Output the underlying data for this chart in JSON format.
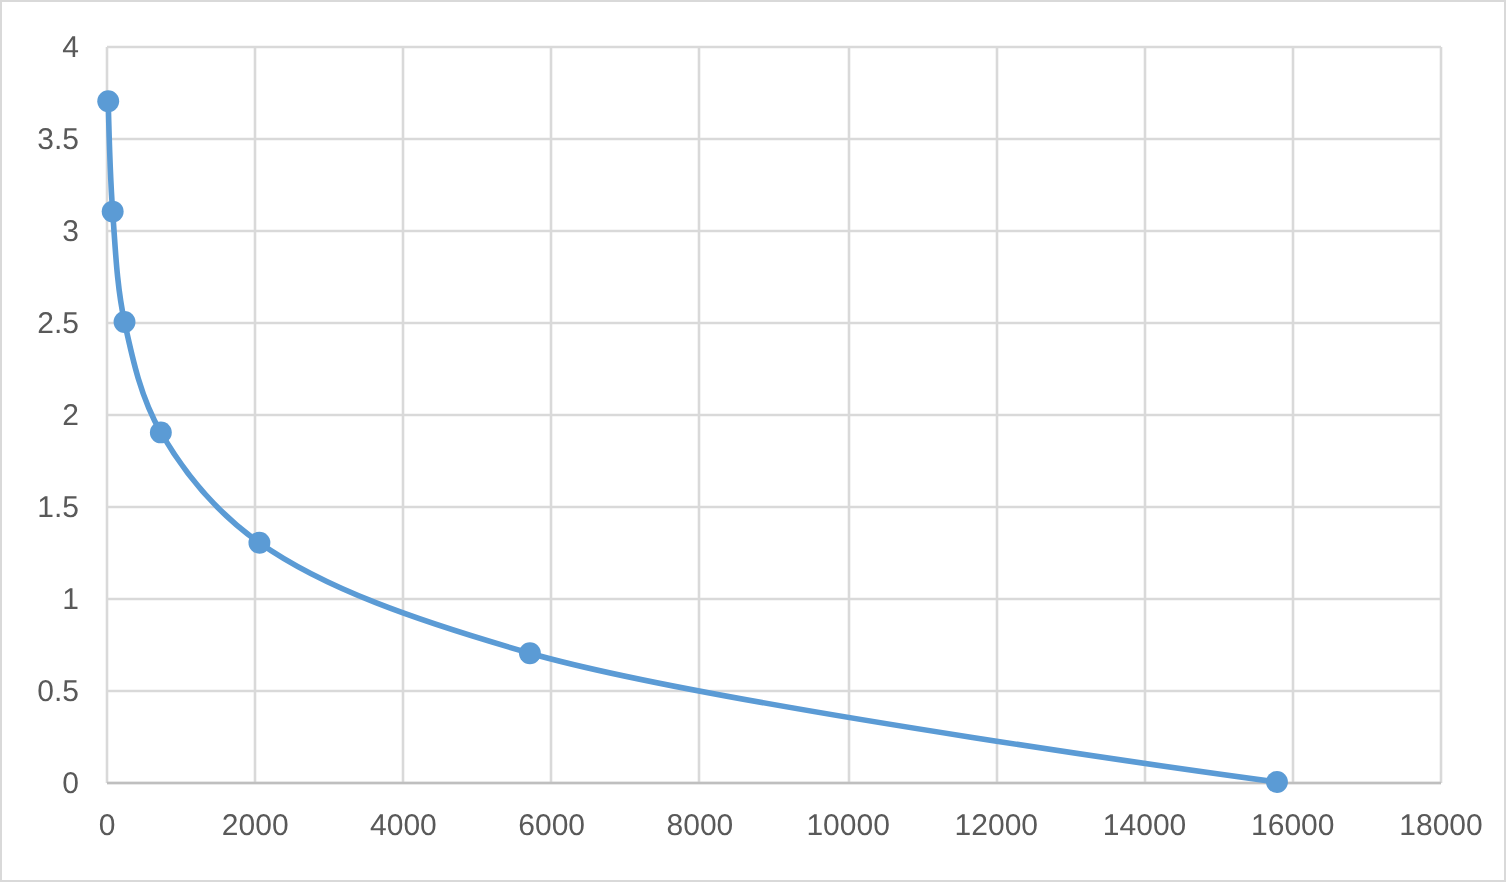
{
  "chart_data": {
    "type": "line",
    "x": [
      30,
      90,
      250,
      740,
      2070,
      5720,
      15800
    ],
    "values": [
      3.7,
      3.1,
      2.5,
      1.9,
      1.3,
      0.7,
      0
    ],
    "color": "#5b9bd5",
    "marker": "circle",
    "line_style": "solid",
    "grid": true,
    "xlim": [
      0,
      18000
    ],
    "xticks": [
      0,
      2000,
      4000,
      6000,
      8000,
      10000,
      12000,
      14000,
      16000,
      18000
    ],
    "ylim": [
      0,
      4
    ],
    "yticks": [
      0,
      0.5,
      1,
      1.5,
      2,
      2.5,
      3,
      3.5,
      4
    ]
  }
}
